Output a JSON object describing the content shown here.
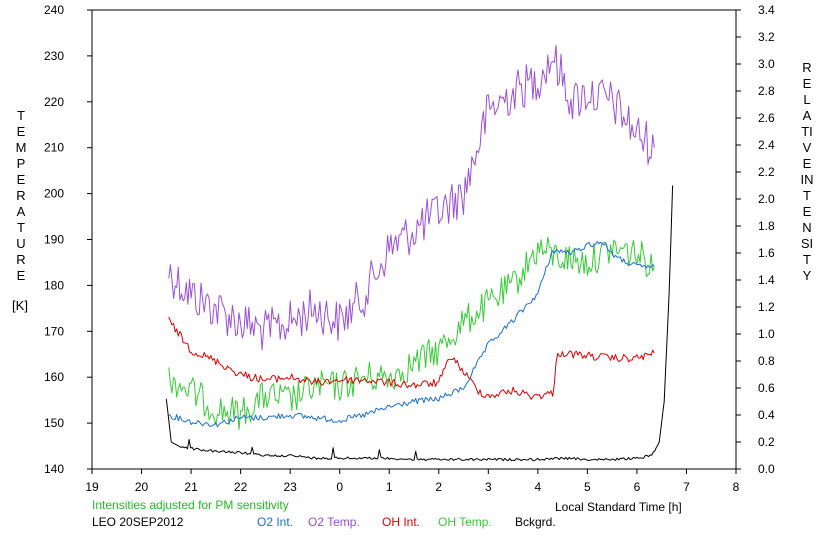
{
  "chart_data": {
    "type": "line",
    "left_axis_label": "TEMPERATURE",
    "left_axis_unit": "[K]",
    "right_axis_label": "RELATIVE INTENSITY",
    "xlabel": "Local Standard Time [h]",
    "x_ticks": [
      "19",
      "20",
      "21",
      "22",
      "23",
      "0",
      "1",
      "2",
      "3",
      "4",
      "5",
      "6",
      "7",
      "8"
    ],
    "y_left_ticks": [
      "140",
      "150",
      "160",
      "170",
      "180",
      "190",
      "200",
      "210",
      "220",
      "230",
      "240"
    ],
    "y_right_ticks": [
      "0.0",
      "0.2",
      "0.4",
      "0.6",
      "0.8",
      "1.0",
      "1.2",
      "1.4",
      "1.6",
      "1.8",
      "2.0",
      "2.2",
      "2.4",
      "2.6",
      "2.8",
      "3.0",
      "3.2",
      "3.4"
    ],
    "ylim_left": [
      140,
      240
    ],
    "ylim_right": [
      0.0,
      3.4
    ],
    "xlim_hours_since_19": [
      0,
      13
    ],
    "note": "Intensities adjusted for PM sensitivity",
    "station": "LEO 20SEP2012",
    "colors": {
      "o2_int": "#1a6fd4",
      "o2_temp": "#9b4fd6",
      "oh_int": "#e00000",
      "oh_temp": "#33cc33",
      "bckgrd": "#000000",
      "note": "#22bb22"
    },
    "series": [
      {
        "name": "O2 Int.",
        "axis": "right",
        "x": [
          20.55,
          21.0,
          21.5,
          22.0,
          22.5,
          23.0,
          23.5,
          0.0,
          0.5,
          1.0,
          1.5,
          2.0,
          2.5,
          3.0,
          3.5,
          4.0,
          4.3,
          4.7,
          5.0,
          5.3,
          5.6,
          6.0,
          6.35
        ],
        "values": [
          0.4,
          0.35,
          0.33,
          0.38,
          0.38,
          0.4,
          0.38,
          0.36,
          0.4,
          0.46,
          0.5,
          0.52,
          0.6,
          0.92,
          1.1,
          1.3,
          1.62,
          1.6,
          1.66,
          1.68,
          1.56,
          1.5,
          1.5
        ]
      },
      {
        "name": "O2 Temp.",
        "axis": "left",
        "x": [
          20.55,
          21.0,
          21.5,
          22.0,
          22.5,
          23.0,
          23.5,
          0.0,
          0.5,
          1.0,
          1.5,
          2.0,
          2.5,
          3.0,
          3.5,
          4.0,
          4.3,
          4.7,
          5.0,
          5.5,
          6.0,
          6.35
        ],
        "values": [
          183,
          178,
          175,
          172,
          170,
          172,
          175,
          172,
          178,
          188,
          192,
          196,
          200,
          218,
          222,
          225,
          230,
          220,
          222,
          220,
          213,
          210
        ]
      },
      {
        "name": "OH Int.",
        "axis": "right",
        "x": [
          20.55,
          21.0,
          21.5,
          22.0,
          22.5,
          23.0,
          23.5,
          0.0,
          0.5,
          1.0,
          1.5,
          2.0,
          2.25,
          2.5,
          2.8,
          3.0,
          3.5,
          3.9,
          4.3,
          4.4,
          5.0,
          5.5,
          6.0,
          6.35
        ],
        "values": [
          1.1,
          0.88,
          0.8,
          0.7,
          0.66,
          0.68,
          0.64,
          0.66,
          0.66,
          0.64,
          0.62,
          0.64,
          0.84,
          0.72,
          0.58,
          0.54,
          0.58,
          0.54,
          0.56,
          0.86,
          0.84,
          0.82,
          0.82,
          0.86
        ]
      },
      {
        "name": "OH Temp.",
        "axis": "left",
        "x": [
          20.55,
          21.0,
          21.5,
          22.0,
          22.5,
          23.0,
          23.5,
          0.0,
          0.5,
          1.0,
          1.5,
          2.0,
          2.5,
          3.0,
          3.5,
          4.0,
          4.5,
          5.0,
          5.5,
          6.0,
          6.35
        ],
        "values": [
          160,
          157,
          153,
          152,
          156,
          155,
          158,
          158,
          160,
          160,
          163,
          166,
          172,
          176,
          180,
          188,
          186,
          185,
          188,
          187,
          184
        ]
      },
      {
        "name": "Bckgrd.",
        "axis": "right",
        "x": [
          20.5,
          20.6,
          20.8,
          21.5,
          22.0,
          22.5,
          23.0,
          23.5,
          0.0,
          0.5,
          1.0,
          1.5,
          2.0,
          2.5,
          3.0,
          3.5,
          4.0,
          4.5,
          5.0,
          5.5,
          6.0,
          6.3,
          6.45,
          6.55,
          6.65,
          6.72
        ],
        "values": [
          0.52,
          0.2,
          0.16,
          0.13,
          0.12,
          0.1,
          0.1,
          0.08,
          0.08,
          0.08,
          0.08,
          0.07,
          0.07,
          0.07,
          0.07,
          0.07,
          0.07,
          0.08,
          0.07,
          0.07,
          0.08,
          0.1,
          0.2,
          0.5,
          1.3,
          2.1
        ]
      }
    ]
  },
  "legend": {
    "o2_int": "O2 Int.",
    "o2_temp": "O2 Temp.",
    "oh_int": "OH Int.",
    "oh_temp": "OH Temp.",
    "bckgrd": "Bckgrd."
  }
}
